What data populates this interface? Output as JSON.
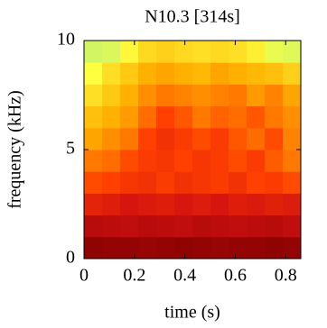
{
  "chart_data": {
    "type": "heatmap",
    "title": "N10.3 [314s]",
    "x_label": "time (s)",
    "y_label": "frequency (kHz)",
    "xlim": [
      0,
      0.86
    ],
    "xticks": [
      0,
      0.2,
      0.4,
      0.6,
      0.8
    ],
    "ylim": [
      0,
      10
    ],
    "yticks": [
      0,
      5,
      10
    ],
    "colormap": [
      "#b4f07a",
      "#ffff40",
      "#ffb000",
      "#ff4000",
      "#d01010",
      "#800000"
    ],
    "z": [
      [
        0.96,
        0.95,
        0.95,
        0.94,
        0.95,
        0.96,
        0.95,
        0.94,
        0.95,
        0.95,
        0.96,
        0.95
      ],
      [
        0.86,
        0.85,
        0.84,
        0.86,
        0.85,
        0.84,
        0.86,
        0.85,
        0.84,
        0.85,
        0.86,
        0.84
      ],
      [
        0.72,
        0.74,
        0.78,
        0.76,
        0.74,
        0.77,
        0.75,
        0.78,
        0.74,
        0.76,
        0.73,
        0.75
      ],
      [
        0.58,
        0.6,
        0.64,
        0.66,
        0.62,
        0.66,
        0.64,
        0.62,
        0.66,
        0.6,
        0.62,
        0.58
      ],
      [
        0.5,
        0.52,
        0.58,
        0.62,
        0.64,
        0.6,
        0.64,
        0.62,
        0.58,
        0.62,
        0.55,
        0.5
      ],
      [
        0.42,
        0.46,
        0.5,
        0.6,
        0.66,
        0.62,
        0.58,
        0.62,
        0.56,
        0.52,
        0.58,
        0.48
      ],
      [
        0.36,
        0.4,
        0.44,
        0.52,
        0.6,
        0.56,
        0.5,
        0.54,
        0.52,
        0.56,
        0.5,
        0.46
      ],
      [
        0.28,
        0.34,
        0.4,
        0.46,
        0.5,
        0.48,
        0.46,
        0.48,
        0.5,
        0.44,
        0.48,
        0.42
      ],
      [
        0.2,
        0.28,
        0.34,
        0.4,
        0.42,
        0.4,
        0.38,
        0.42,
        0.4,
        0.38,
        0.36,
        0.32
      ],
      [
        0.08,
        0.1,
        0.22,
        0.3,
        0.32,
        0.3,
        0.28,
        0.3,
        0.28,
        0.24,
        0.14,
        0.12
      ]
    ]
  }
}
